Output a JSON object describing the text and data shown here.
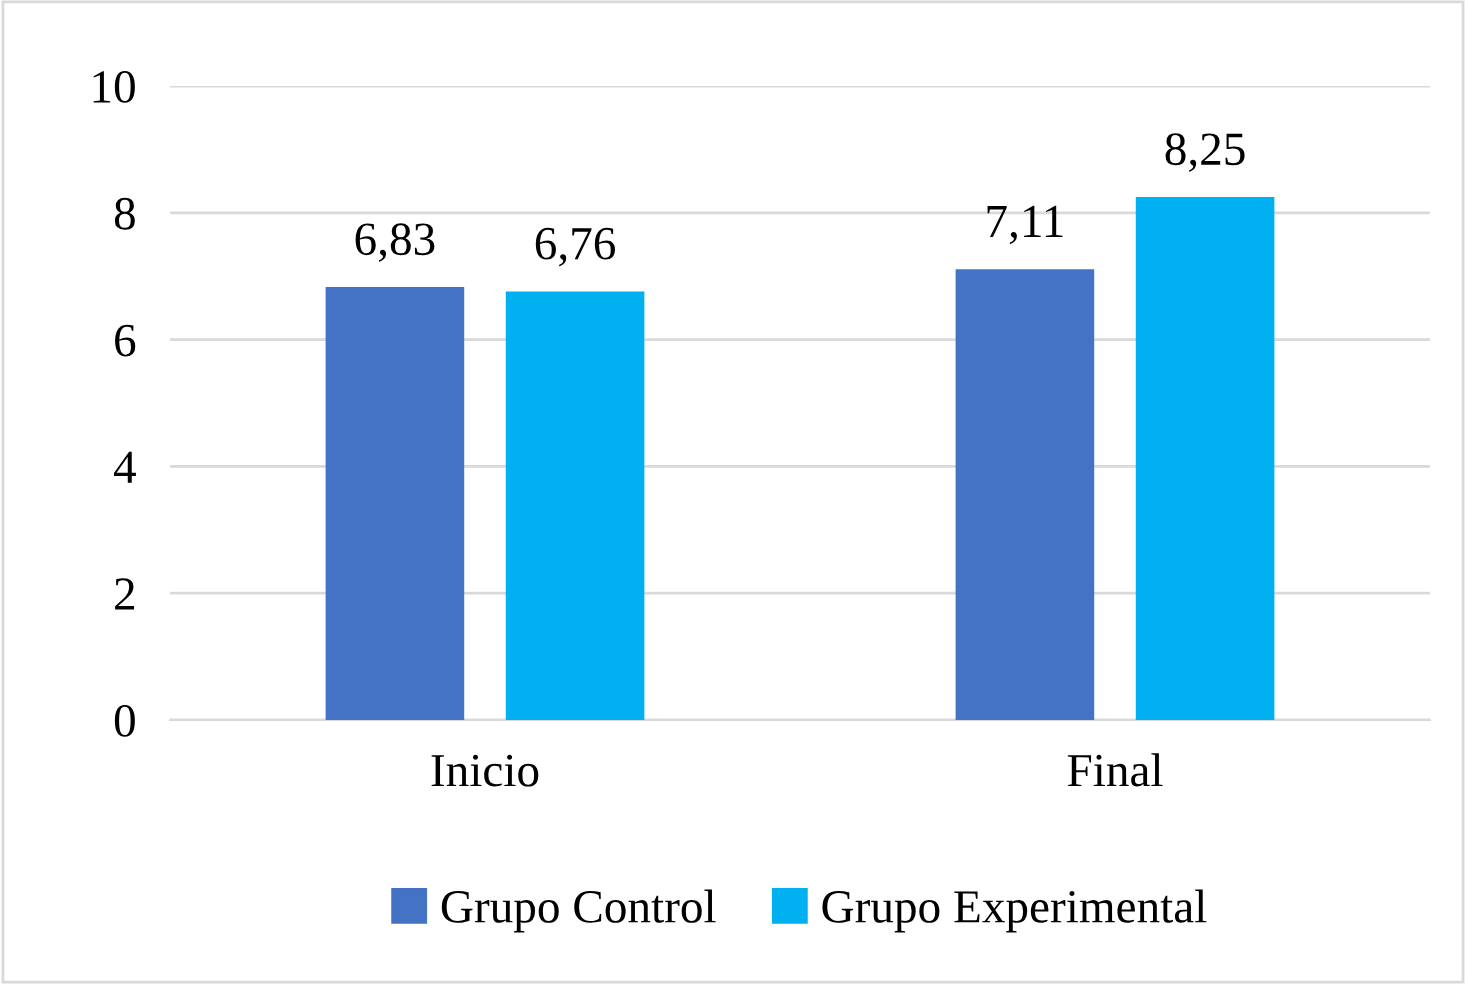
{
  "chart_data": {
    "type": "bar",
    "categories": [
      "Inicio",
      "Final"
    ],
    "series": [
      {
        "name": "Grupo Control",
        "color": "#4472c4",
        "values": [
          6.83,
          7.11
        ],
        "value_labels": [
          "6,83",
          "7,11"
        ]
      },
      {
        "name": "Grupo Experimental",
        "color": "#00b0f0",
        "values": [
          6.76,
          8.25
        ],
        "value_labels": [
          "6,76",
          "8,25"
        ]
      }
    ],
    "ylim": [
      0,
      10
    ],
    "yticks": [
      0,
      2,
      4,
      6,
      8,
      10
    ],
    "grid": "y",
    "legend": "bottom"
  }
}
